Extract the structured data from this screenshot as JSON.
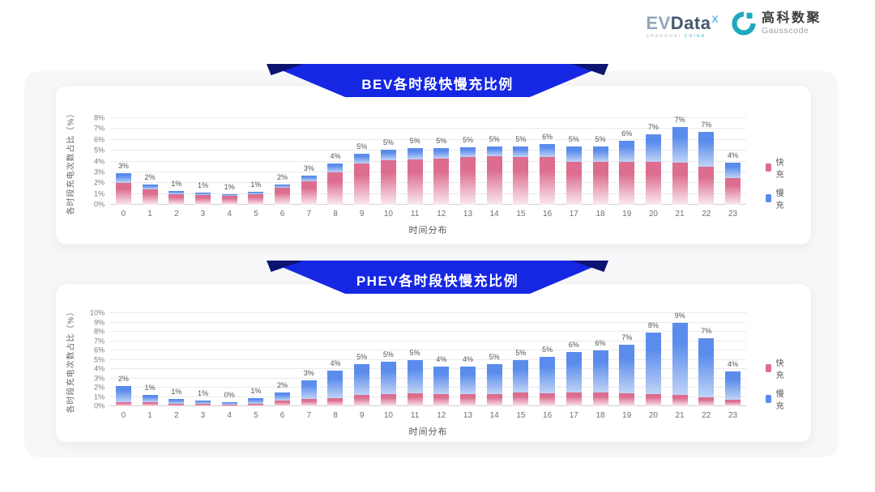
{
  "header": {
    "evdata": {
      "ev": "EV",
      "data": "Data",
      "sup": "X",
      "sub1": "SHANGHAI",
      "sub2": "CHINA"
    },
    "gausscode": {
      "cn": "高科数聚",
      "en": "Gausscode"
    }
  },
  "theme": {
    "banner_color": "#1627E4",
    "banner_fold_color": "#0C1472",
    "fast_color": "#DC6D8E",
    "slow_color": "#5B8CEC",
    "logo_teal": "#1FA8BC"
  },
  "chart_data": [
    {
      "type": "bar",
      "stacked": true,
      "title": "BEV各时段快慢充比例",
      "xlabel": "时间分布",
      "ylabel": "各时段充电次数占比（%）",
      "ylim": [
        0,
        8
      ],
      "ytick_step": 1,
      "ytick_suffix": "%",
      "grid": true,
      "legend_position": "right",
      "categories": [
        0,
        1,
        2,
        3,
        4,
        5,
        6,
        7,
        8,
        9,
        10,
        11,
        12,
        13,
        14,
        15,
        16,
        17,
        18,
        19,
        20,
        21,
        22,
        23
      ],
      "series": [
        {
          "name": "快充",
          "color": "#DC6D8E",
          "fade": "#F9E9EE",
          "values": [
            2.0,
            1.4,
            1.0,
            0.9,
            0.8,
            1.0,
            1.6,
            2.2,
            3.0,
            3.8,
            4.1,
            4.2,
            4.3,
            4.4,
            4.5,
            4.4,
            4.4,
            4.0,
            4.0,
            4.0,
            4.0,
            3.9,
            3.5,
            2.5
          ]
        },
        {
          "name": "慢充",
          "color": "#5B8CEC",
          "fade": "#BFD3F5",
          "values": [
            0.9,
            0.45,
            0.3,
            0.2,
            0.15,
            0.2,
            0.3,
            0.5,
            0.8,
            0.9,
            1.0,
            1.0,
            0.9,
            0.9,
            0.9,
            1.0,
            1.2,
            1.4,
            1.4,
            1.9,
            2.5,
            3.3,
            3.2,
            1.4
          ]
        }
      ],
      "bar_labels": [
        "3%",
        "2%",
        "1%",
        "1%",
        "1%",
        "1%",
        "2%",
        "3%",
        "4%",
        "5%",
        "5%",
        "5%",
        "5%",
        "5%",
        "5%",
        "5%",
        "6%",
        "5%",
        "5%",
        "6%",
        "7%",
        "7%",
        "7%",
        "4%"
      ]
    },
    {
      "type": "bar",
      "stacked": true,
      "title": "PHEV各时段快慢充比例",
      "xlabel": "时间分布",
      "ylabel": "各时段充电次数占比（%）",
      "ylim": [
        0,
        10
      ],
      "ytick_step": 1,
      "ytick_suffix": "%",
      "grid": true,
      "legend_position": "right",
      "categories": [
        0,
        1,
        2,
        3,
        4,
        5,
        6,
        7,
        8,
        9,
        10,
        11,
        12,
        13,
        14,
        15,
        16,
        17,
        18,
        19,
        20,
        21,
        22,
        23
      ],
      "series": [
        {
          "name": "快充",
          "color": "#DC6D8E",
          "fade": "#F9E9EE",
          "values": [
            0.45,
            0.4,
            0.3,
            0.25,
            0.2,
            0.3,
            0.6,
            0.8,
            0.9,
            1.2,
            1.3,
            1.4,
            1.3,
            1.3,
            1.3,
            1.5,
            1.4,
            1.5,
            1.5,
            1.4,
            1.3,
            1.2,
            1.0,
            0.7
          ]
        },
        {
          "name": "慢充",
          "color": "#5B8CEC",
          "fade": "#BFD3F5",
          "values": [
            1.75,
            0.8,
            0.5,
            0.35,
            0.25,
            0.55,
            0.9,
            2.0,
            2.9,
            3.3,
            3.5,
            3.6,
            3.0,
            3.0,
            3.2,
            3.5,
            3.9,
            4.3,
            4.5,
            5.2,
            6.6,
            7.8,
            6.3,
            3.0
          ]
        }
      ],
      "bar_labels": [
        "2%",
        "1%",
        "1%",
        "1%",
        "0%",
        "1%",
        "2%",
        "3%",
        "4%",
        "5%",
        "5%",
        "5%",
        "4%",
        "4%",
        "5%",
        "5%",
        "5%",
        "6%",
        "6%",
        "7%",
        "8%",
        "9%",
        "7%",
        "4%"
      ]
    }
  ]
}
